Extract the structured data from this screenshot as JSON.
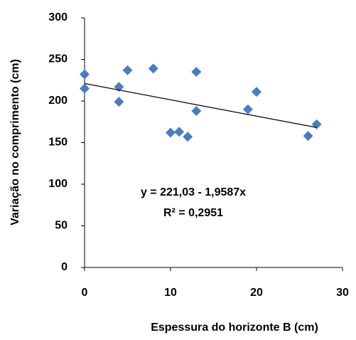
{
  "chart_data": {
    "type": "scatter",
    "x_label": "Espessura do horizonte B (cm)",
    "y_label": "Variação no comprimento (cm)",
    "series": [
      {
        "color": "#4a7ebb",
        "x": [
          0,
          0,
          4,
          4,
          5,
          8,
          10,
          11,
          12,
          13,
          13,
          19,
          20,
          26,
          27
        ],
        "values": [
          232,
          215,
          217,
          199,
          237,
          239,
          162,
          163,
          157,
          235,
          188,
          190,
          211,
          158,
          172
        ]
      }
    ],
    "trendline": {
      "intercept": 221.03,
      "slope": -1.9587,
      "color": "#000000"
    },
    "annotations": [
      "y = 221,03 - 1,9587x",
      "R² = 0,2951"
    ],
    "xlim": [
      0,
      30
    ],
    "xticks": [
      0,
      10,
      20,
      30
    ],
    "ylim": [
      0,
      300
    ],
    "yticks": [
      0,
      50,
      100,
      150,
      200,
      250,
      300
    ],
    "grid": false
  }
}
